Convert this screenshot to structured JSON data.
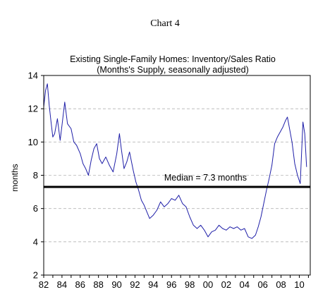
{
  "chart_data": {
    "type": "line",
    "header": "Chart 4",
    "title": "Existing Single-Family Homes:  Inventory/Sales Ratio",
    "subtitle": "(Months's Supply, seasonally adjusted)",
    "xlabel": "",
    "ylabel": "months",
    "ylim": [
      2,
      14
    ],
    "yticks": [
      2,
      4,
      6,
      8,
      10,
      12,
      14
    ],
    "xlim": [
      1982,
      2011.2
    ],
    "xticks": [
      1982,
      1984,
      1986,
      1988,
      1990,
      1992,
      1994,
      1996,
      1998,
      2000,
      2002,
      2004,
      2006,
      2008,
      2010
    ],
    "xtick_labels": [
      "82",
      "84",
      "86",
      "88",
      "90",
      "92",
      "94",
      "96",
      "98",
      "00",
      "02",
      "04",
      "06",
      "08",
      "10"
    ],
    "grid": "horizontal dashed",
    "legend": "none",
    "series_color": "#1f1fa8",
    "median_line": {
      "value": 7.3,
      "label": "Median = 7.3 months",
      "color": "#000000"
    },
    "series": [
      {
        "x": [
          1982.0,
          1982.2,
          1982.4,
          1982.6,
          1982.8,
          1983.0,
          1983.2,
          1983.5,
          1983.8,
          1984.0,
          1984.3,
          1984.6,
          1985.0,
          1985.3,
          1985.6,
          1986.0,
          1986.3,
          1986.6,
          1986.9,
          1987.2,
          1987.5,
          1987.8,
          1988.1,
          1988.4,
          1988.8,
          1989.2,
          1989.6,
          1990.0,
          1990.3,
          1990.5,
          1990.8,
          1991.1,
          1991.4,
          1991.8,
          1992.1,
          1992.4,
          1992.7,
          1993.0,
          1993.3,
          1993.6,
          1994.0,
          1994.4,
          1994.8,
          1995.2,
          1995.6,
          1996.0,
          1996.4,
          1996.8,
          1997.2,
          1997.6,
          1998.0,
          1998.4,
          1998.8,
          1999.2,
          1999.6,
          2000.0,
          2000.4,
          2000.8,
          2001.2,
          2001.6,
          2002.0,
          2002.4,
          2002.8,
          2003.2,
          2003.6,
          2004.0,
          2004.4,
          2004.8,
          2005.2,
          2005.5,
          2005.8,
          2006.1,
          2006.4,
          2006.7,
          2007.0,
          2007.3,
          2007.6,
          2007.9,
          2008.2,
          2008.5,
          2008.7,
          2009.0,
          2009.2,
          2009.5,
          2009.8,
          2010.1,
          2010.4,
          2010.6,
          2010.8
        ],
        "y": [
          12.1,
          13.1,
          13.5,
          12.2,
          11.2,
          10.3,
          10.5,
          11.4,
          10.1,
          11.0,
          12.4,
          11.1,
          10.8,
          10.0,
          9.8,
          9.3,
          8.7,
          8.4,
          8.0,
          8.9,
          9.6,
          9.9,
          9.0,
          8.7,
          9.1,
          8.6,
          8.2,
          9.3,
          10.5,
          9.6,
          8.4,
          8.8,
          9.4,
          8.3,
          7.6,
          7.1,
          6.5,
          6.2,
          5.8,
          5.4,
          5.6,
          5.9,
          6.4,
          6.1,
          6.3,
          6.6,
          6.5,
          6.8,
          6.3,
          6.1,
          5.5,
          5.0,
          4.8,
          5.0,
          4.7,
          4.3,
          4.6,
          4.7,
          5.0,
          4.8,
          4.7,
          4.9,
          4.8,
          4.9,
          4.7,
          4.8,
          4.3,
          4.2,
          4.4,
          4.9,
          5.5,
          6.3,
          7.1,
          7.8,
          8.6,
          9.9,
          10.3,
          10.6,
          10.9,
          11.3,
          11.5,
          10.6,
          10.0,
          8.7,
          8.0,
          7.5,
          11.2,
          10.5,
          8.5
        ]
      }
    ]
  }
}
